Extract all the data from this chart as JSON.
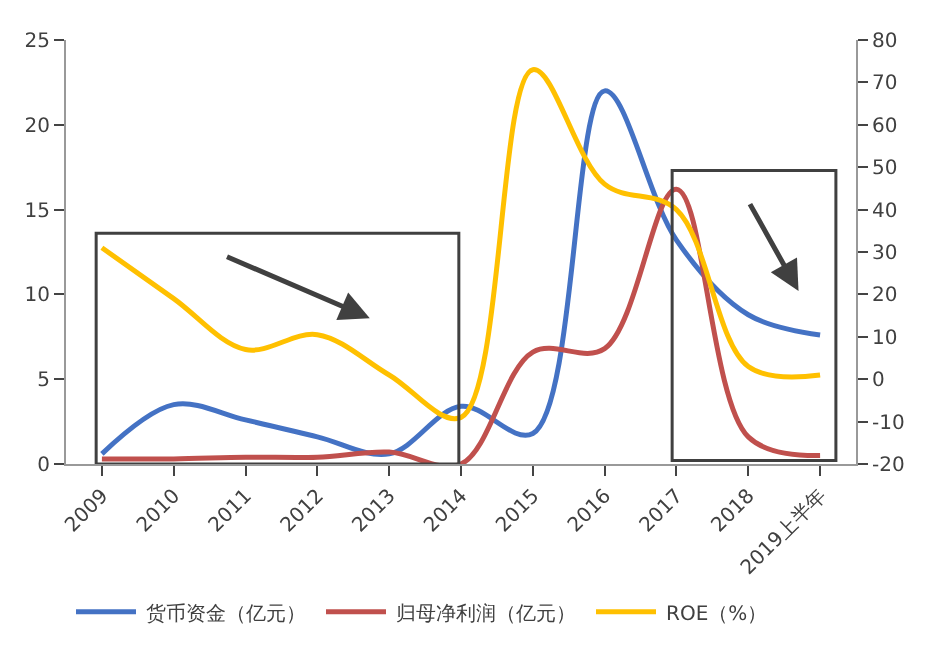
{
  "chart_data": {
    "type": "line",
    "categories": [
      "2009",
      "2010",
      "2011",
      "2012",
      "2013",
      "2014",
      "2015",
      "2016",
      "2017",
      "2018",
      "2019上半年"
    ],
    "series": [
      {
        "name": "货币资金（亿元）",
        "color": "#4472c4",
        "values": [
          0.6,
          3.5,
          2.6,
          1.6,
          0.6,
          3.4,
          1.8,
          22,
          13.2,
          8.8,
          7.6
        ]
      },
      {
        "name": "归母净利润（亿元）",
        "color": "#c0504d",
        "values": [
          0.3,
          0.3,
          0.4,
          0.4,
          0.7,
          0,
          6.6,
          6.8,
          16.2,
          1.6,
          0.5
        ]
      },
      {
        "name": "ROE（%）",
        "color": "#ffc000",
        "axis": "y2",
        "values": [
          31,
          19,
          7,
          10.5,
          1,
          -9,
          73,
          46,
          40,
          3,
          1
        ]
      }
    ],
    "ylim": [
      0,
      25
    ],
    "yticks": [
      0,
      5,
      10,
      15,
      20,
      25
    ],
    "y2lim": [
      -20,
      80
    ],
    "y2ticks": [
      -20,
      -10,
      0,
      10,
      20,
      30,
      40,
      50,
      60,
      70,
      80
    ],
    "legend": "bottom",
    "marker": "none",
    "line_style": "solid"
  }
}
